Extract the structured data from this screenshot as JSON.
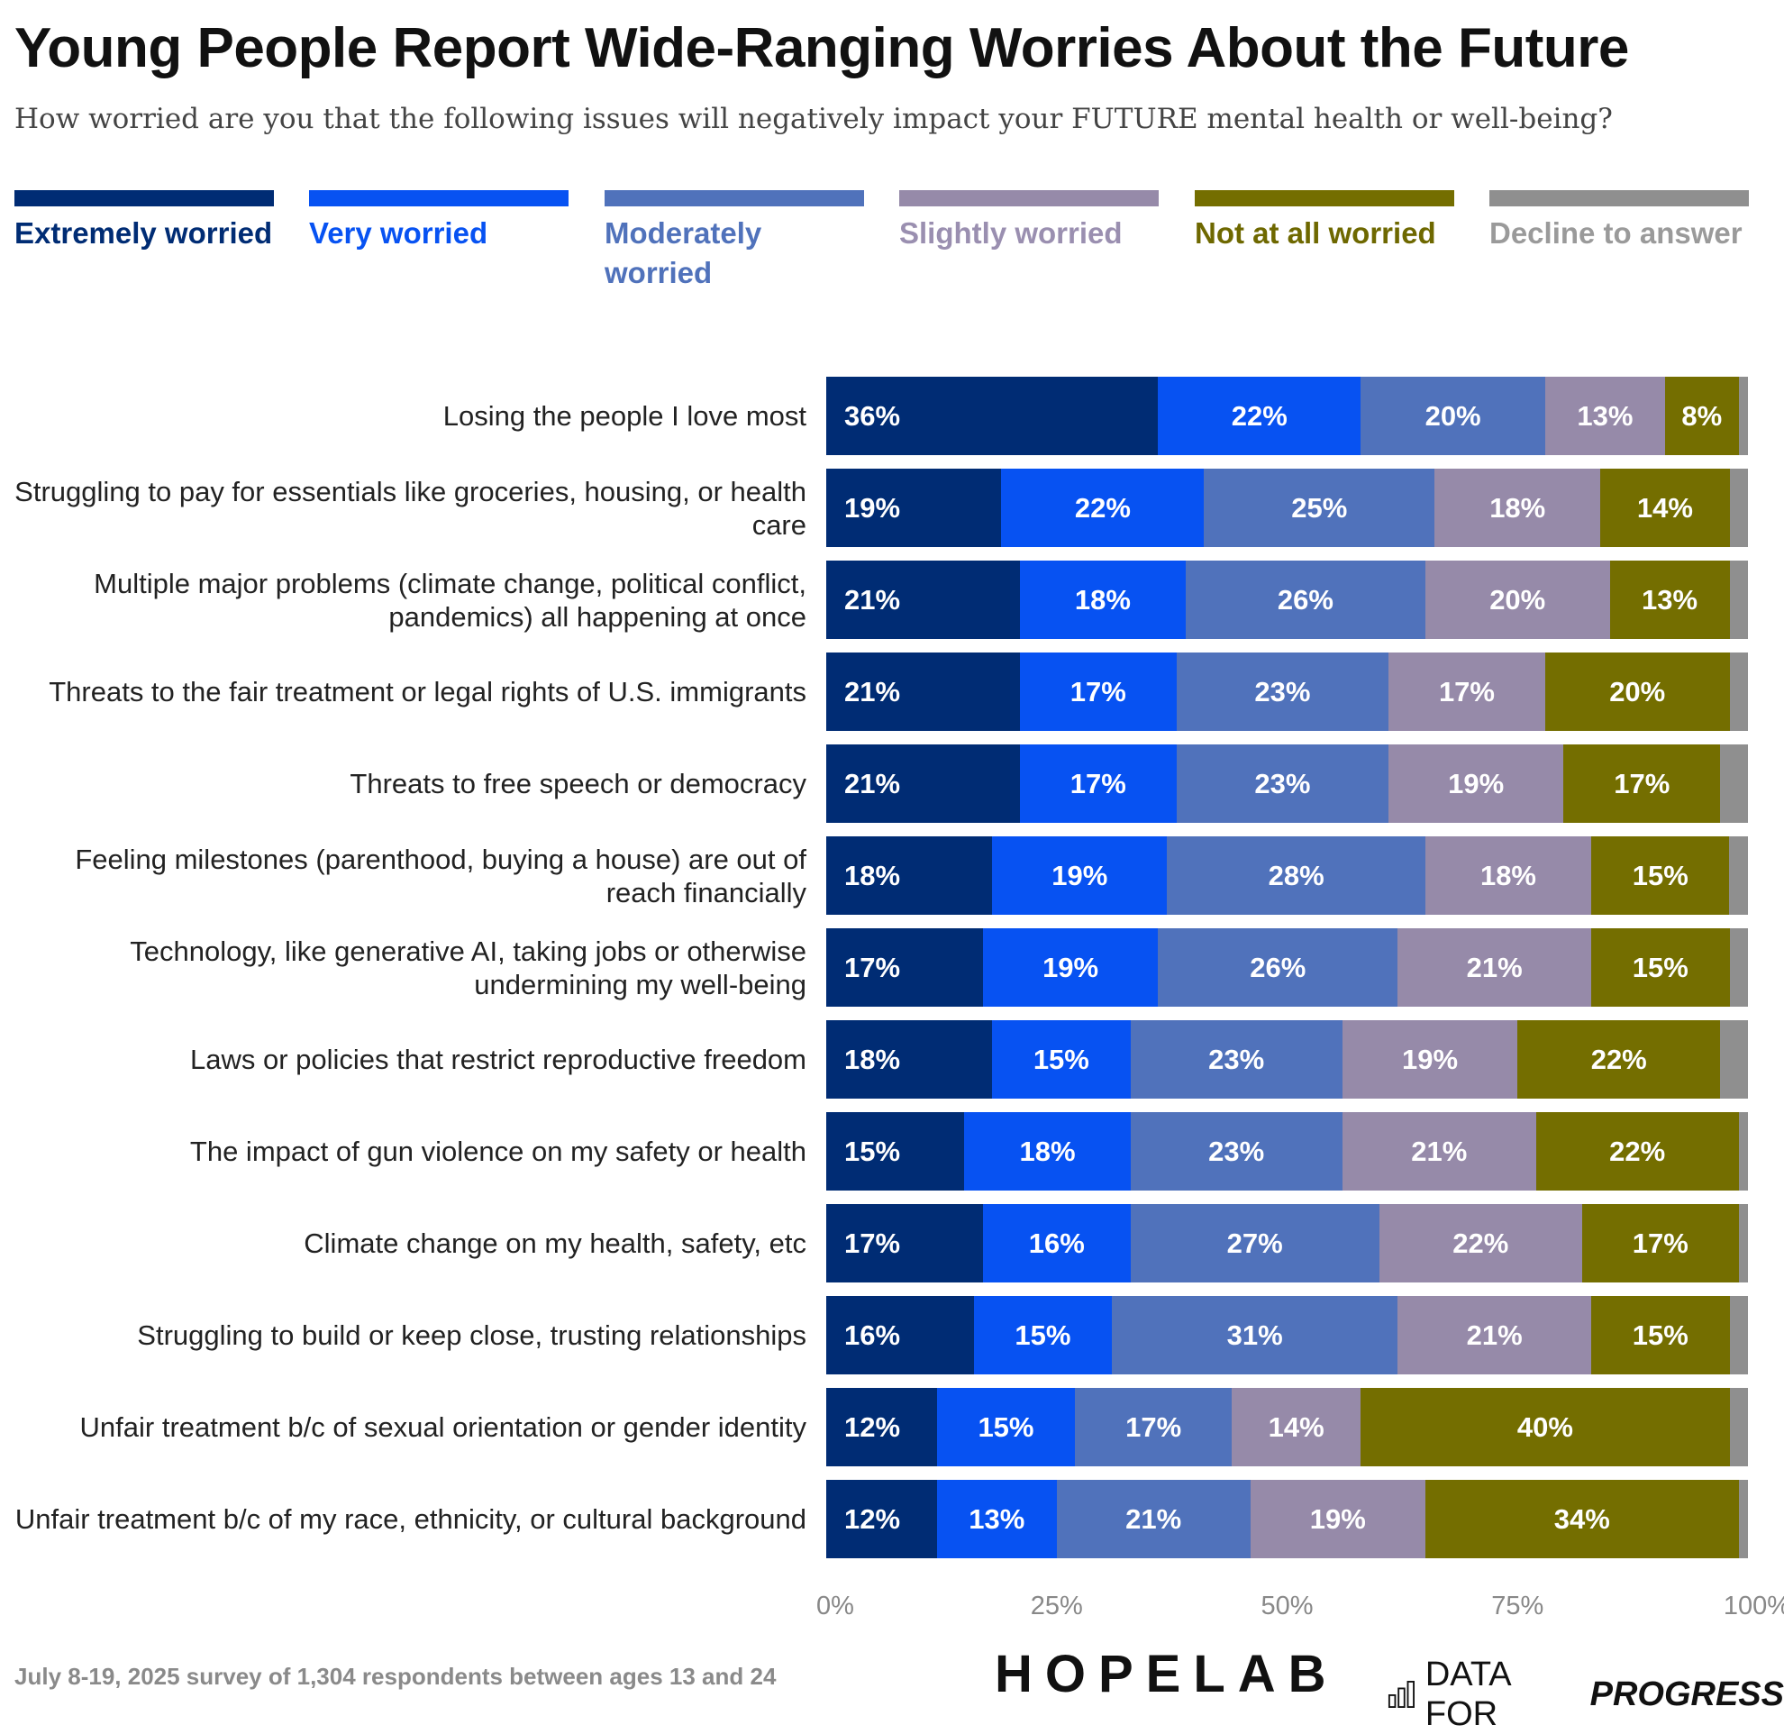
{
  "title": "Young People Report Wide-Ranging Worries About the Future",
  "subtitle": "How worried are you that the following issues will negatively impact your FUTURE mental health or well-being?",
  "legend": [
    {
      "label": "Extremely worried",
      "color": "#002c74",
      "text_color": "#002c74"
    },
    {
      "label": "Very worried",
      "color": "#0752f2",
      "text_color": "#0752f2"
    },
    {
      "label": "Moderately worried",
      "color": "#5072bb",
      "text_color": "#5072bb"
    },
    {
      "label": "Slightly worried",
      "color": "#968aa9",
      "text_color": "#9a8fb0"
    },
    {
      "label": "Not at all worried",
      "color": "#746e00",
      "text_color": "#6e6800"
    },
    {
      "label": "Decline to answer",
      "color": "#8f8f8f",
      "text_color": "#9a9a9a"
    }
  ],
  "chart_data": {
    "type": "bar",
    "orientation": "horizontal",
    "stacked": true,
    "title": "Young People Report Wide-Ranging Worries About the Future",
    "subtitle": "How worried are you that the following issues will negatively impact your FUTURE mental health or well-being?",
    "xlim": [
      0,
      100
    ],
    "x_ticks": [
      "0%",
      "25%",
      "50%",
      "75%",
      "100%"
    ],
    "legend_position": "top",
    "categories": [
      "Losing the people I love most",
      "Struggling to pay for essentials like groceries, housing, or health care",
      "Multiple major problems (climate change, political conflict, pandemics) all happening at once",
      "Threats to the fair treatment or legal rights of U.S. immigrants",
      "Threats to free speech or democracy",
      "Feeling milestones (parenthood, buying a house) are out of reach financially",
      "Technology, like generative AI, taking jobs or otherwise undermining my well-being",
      "Laws or policies that restrict reproductive freedom",
      "The impact of gun violence on my safety or health",
      "Climate change on my health, safety, etc",
      "Struggling to build or keep close, trusting relationships",
      "Unfair treatment b/c of sexual orientation or gender identity",
      "Unfair treatment b/c of my race, ethnicity, or cultural background"
    ],
    "series": [
      {
        "name": "Extremely worried",
        "values": [
          36,
          19,
          21,
          21,
          21,
          18,
          17,
          18,
          15,
          17,
          16,
          12,
          12
        ]
      },
      {
        "name": "Very worried",
        "values": [
          22,
          22,
          18,
          17,
          17,
          19,
          19,
          15,
          18,
          16,
          15,
          15,
          13
        ]
      },
      {
        "name": "Moderately worried",
        "values": [
          20,
          25,
          26,
          23,
          23,
          28,
          26,
          23,
          23,
          27,
          31,
          17,
          21
        ]
      },
      {
        "name": "Slightly worried",
        "values": [
          13,
          18,
          20,
          17,
          19,
          18,
          21,
          19,
          21,
          22,
          21,
          14,
          19
        ]
      },
      {
        "name": "Not at all worried",
        "values": [
          8,
          14,
          13,
          20,
          17,
          15,
          15,
          22,
          22,
          17,
          15,
          40,
          34
        ]
      }
    ],
    "label_suffix": "%"
  },
  "footer": "July 8-19, 2025 survey of 1,304 respondents between ages 13 and 24",
  "logos": {
    "hopelab": "HOPELAB",
    "dfp_light": "DATA FOR",
    "dfp_bold": "PROGRESS"
  }
}
